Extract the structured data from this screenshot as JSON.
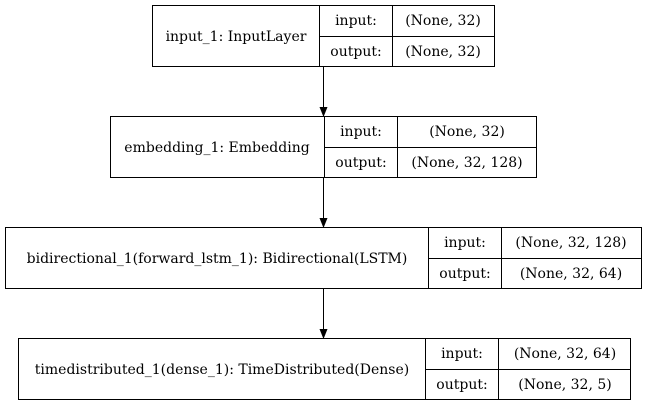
{
  "nodes": [
    {
      "title": "input_1: InputLayer",
      "input_label": "input:",
      "output_label": "output:",
      "input_shape": "(None, 32)",
      "output_shape": "(None, 32)"
    },
    {
      "title": "embedding_1: Embedding",
      "input_label": "input:",
      "output_label": "output:",
      "input_shape": "(None, 32)",
      "output_shape": "(None, 32, 128)"
    },
    {
      "title": "bidirectional_1(forward_lstm_1): Bidirectional(LSTM)",
      "input_label": "input:",
      "output_label": "output:",
      "input_shape": "(None, 32, 128)",
      "output_shape": "(None, 32, 64)"
    },
    {
      "title": "timedistributed_1(dense_1): TimeDistributed(Dense)",
      "input_label": "input:",
      "output_label": "output:",
      "input_shape": "(None, 32, 64)",
      "output_shape": "(None, 32, 5)"
    }
  ]
}
